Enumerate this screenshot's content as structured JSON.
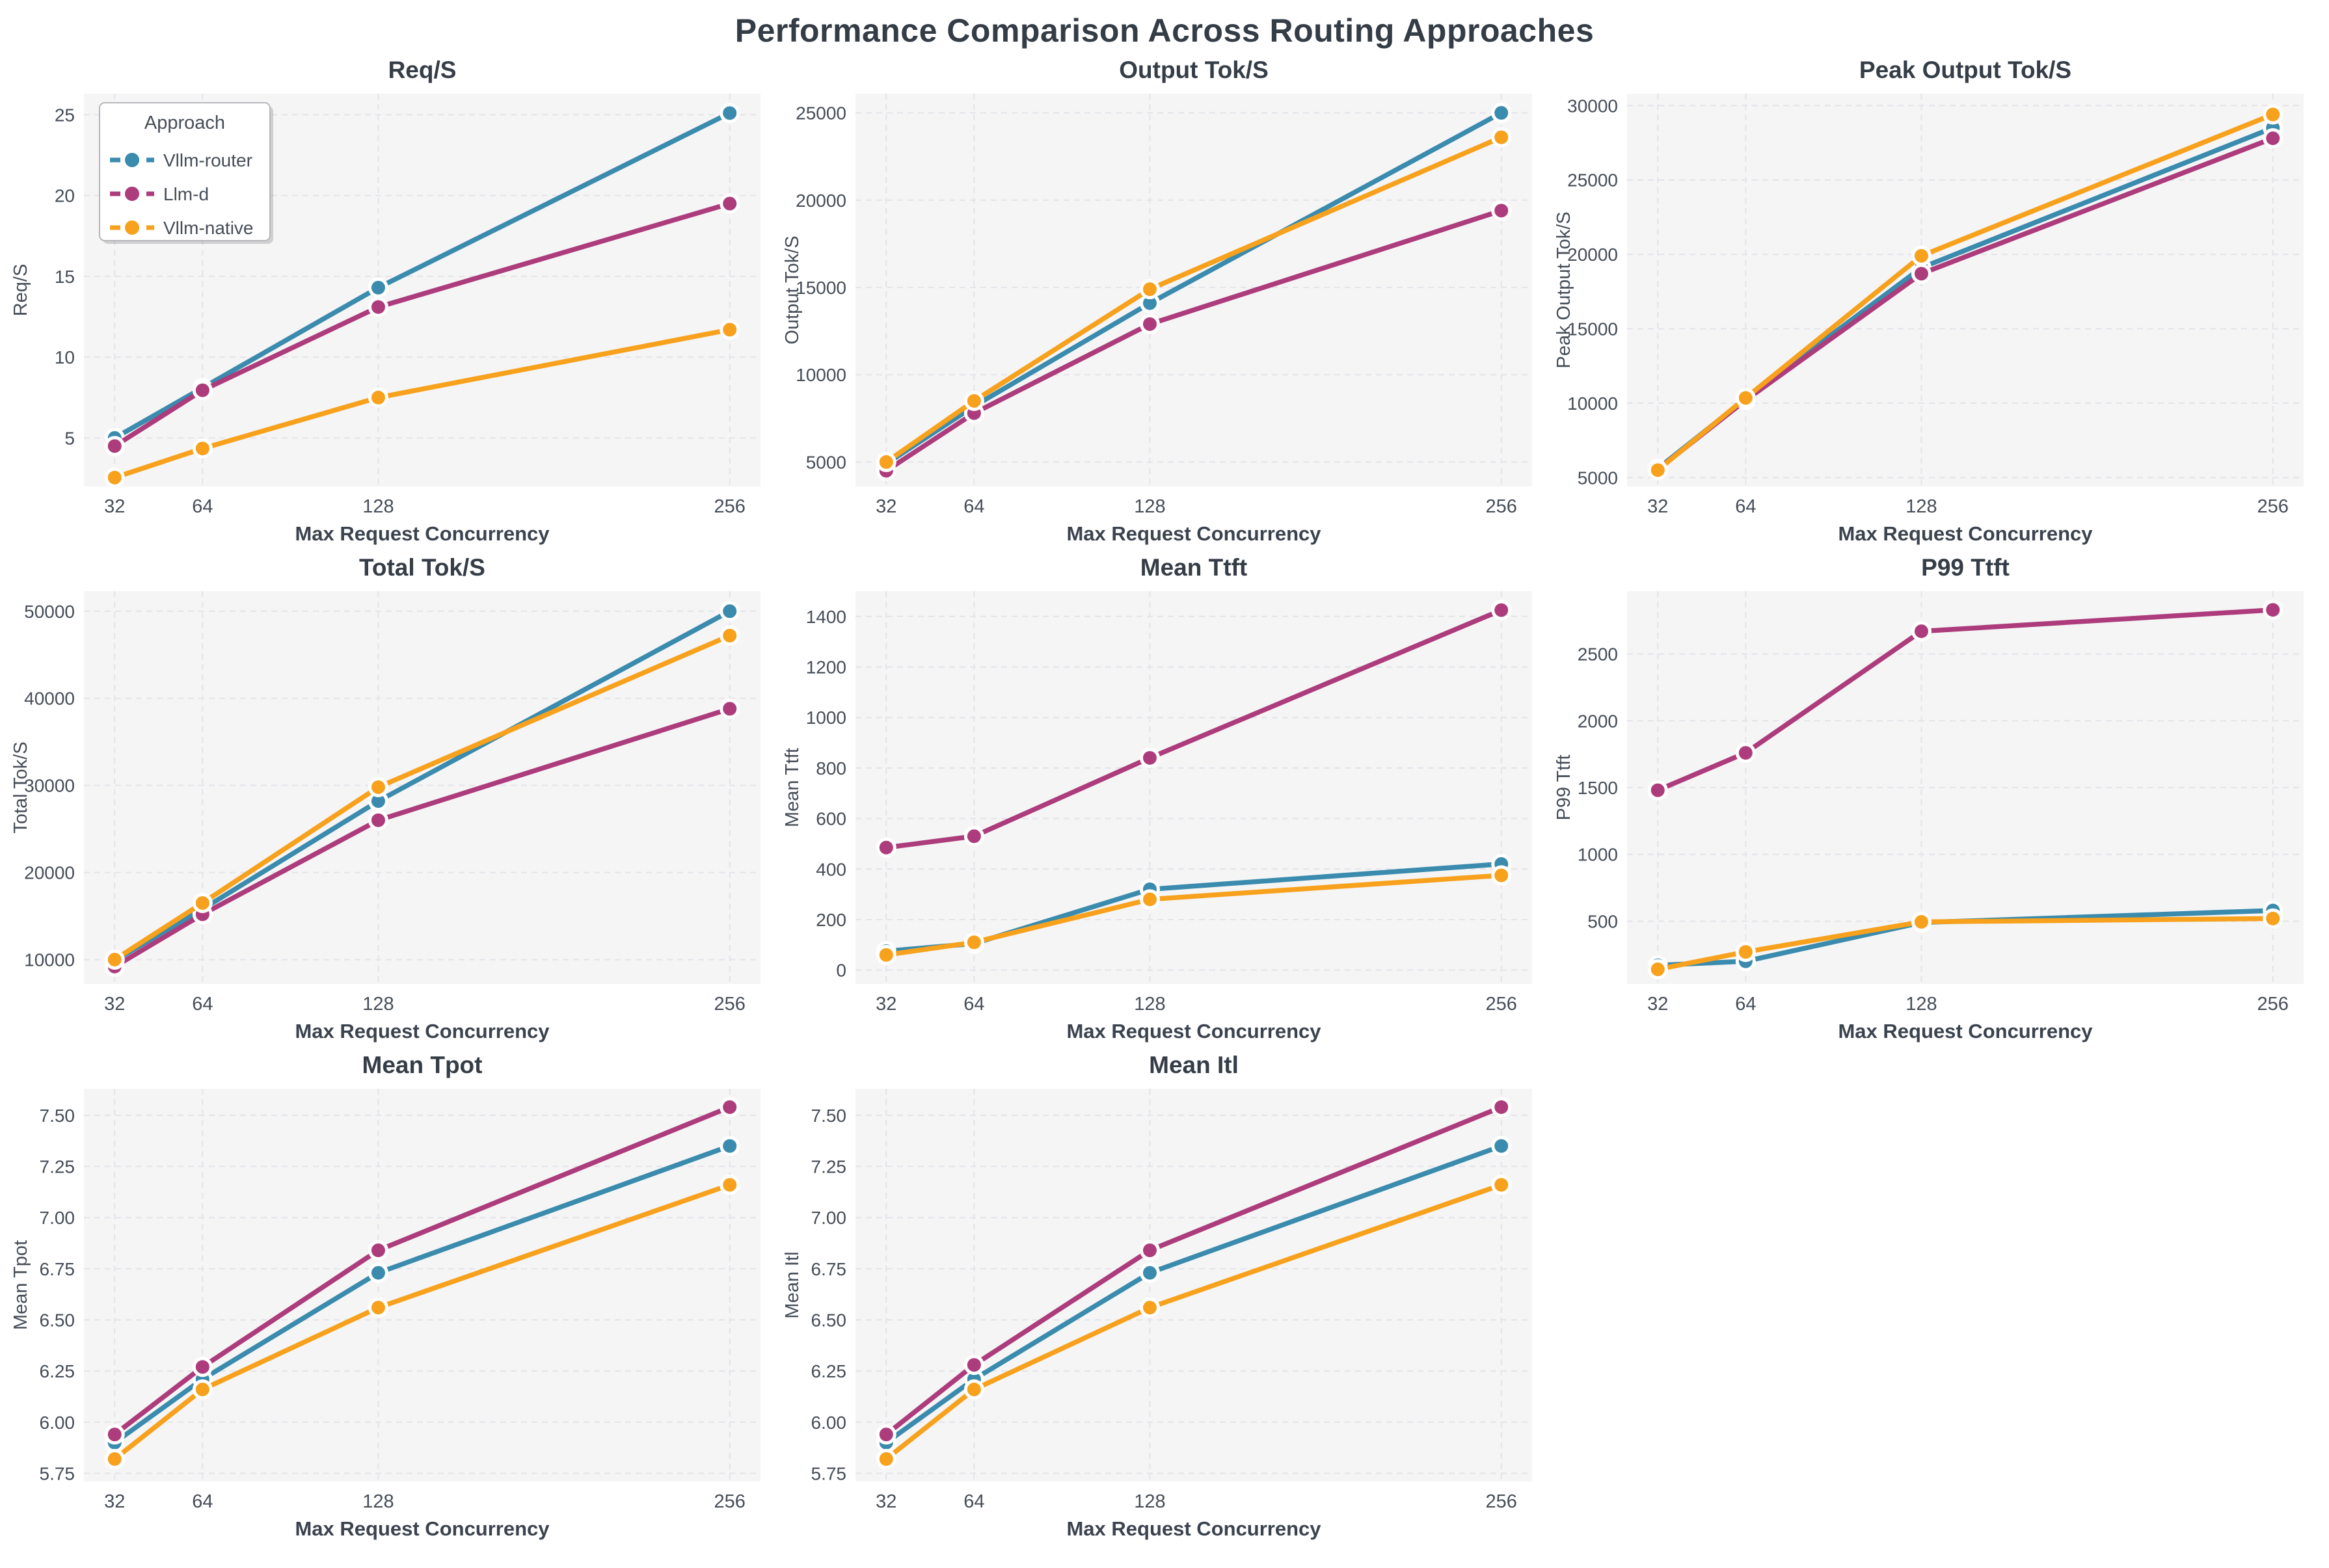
{
  "page_title": "Performance Comparison Across Routing Approaches",
  "x_axis": {
    "label": "Max Request Concurrency",
    "values": [
      32,
      64,
      128,
      256
    ],
    "tick_labels": [
      "32",
      "64",
      "128",
      "256"
    ],
    "scale": "linear"
  },
  "legend": {
    "title": "Approach",
    "location": "upper-left of first subplot",
    "entries": [
      {
        "label": "Vllm-router",
        "color": "#3a8bad"
      },
      {
        "label": "Llm-d",
        "color": "#ad3c7c"
      },
      {
        "label": "Vllm-native",
        "color": "#f7a11d"
      }
    ]
  },
  "style": {
    "plot_bg": "#f5f5f6",
    "grid_color": "#e4e4e9",
    "title_color": "#353d47",
    "tick_color": "#454d57",
    "label_color": "#3b434e",
    "legend_border": "#b6b6bc",
    "marker_edge": "#ffffff"
  },
  "chart_data": [
    {
      "type": "line",
      "title": "Req/S",
      "ylabel": "Req/S",
      "ylim": [
        2.0,
        26.3
      ],
      "yticks": [
        5,
        10,
        15,
        20,
        25
      ],
      "ytick_labels": [
        "5",
        "10",
        "15",
        "20",
        "25"
      ],
      "grid": true,
      "series": [
        {
          "name": "Vllm-router",
          "values": [
            5.0,
            8.1,
            14.3,
            25.1
          ]
        },
        {
          "name": "Llm-d",
          "values": [
            4.5,
            7.95,
            13.1,
            19.5
          ]
        },
        {
          "name": "Vllm-native",
          "values": [
            2.55,
            4.35,
            7.5,
            11.7
          ]
        }
      ]
    },
    {
      "type": "line",
      "title": "Output Tok/S",
      "ylabel": "Output Tok/S",
      "ylim": [
        3600,
        26100
      ],
      "yticks": [
        5000,
        10000,
        15000,
        20000,
        25000
      ],
      "ytick_labels": [
        "5000",
        "10000",
        "15000",
        "20000",
        "25000"
      ],
      "grid": true,
      "series": [
        {
          "name": "Vllm-router",
          "values": [
            4900,
            8200,
            14100,
            25000
          ]
        },
        {
          "name": "Llm-d",
          "values": [
            4500,
            7800,
            12900,
            19400
          ]
        },
        {
          "name": "Vllm-native",
          "values": [
            5000,
            8500,
            14900,
            23600
          ]
        }
      ]
    },
    {
      "type": "line",
      "title": "Peak Output Tok/S",
      "ylabel": "Peak Output Tok/S",
      "ylim": [
        4400,
        30800
      ],
      "yticks": [
        5000,
        10000,
        15000,
        20000,
        25000,
        30000
      ],
      "ytick_labels": [
        "5000",
        "10000",
        "15000",
        "20000",
        "25000",
        "30000"
      ],
      "grid": true,
      "series": [
        {
          "name": "Vllm-router",
          "values": [
            5600,
            10300,
            19100,
            28500
          ]
        },
        {
          "name": "Llm-d",
          "values": [
            5550,
            10200,
            18700,
            27800
          ]
        },
        {
          "name": "Vllm-native",
          "values": [
            5500,
            10350,
            19900,
            29400
          ]
        }
      ]
    },
    {
      "type": "line",
      "title": "Total Tok/S",
      "ylabel": "Total Tok/S",
      "ylim": [
        7200,
        52300
      ],
      "yticks": [
        10000,
        20000,
        30000,
        40000,
        50000
      ],
      "ytick_labels": [
        "10000",
        "20000",
        "30000",
        "40000",
        "50000"
      ],
      "grid": true,
      "series": [
        {
          "name": "Vllm-router",
          "values": [
            9900,
            15800,
            28200,
            50000
          ]
        },
        {
          "name": "Llm-d",
          "values": [
            9200,
            15200,
            26000,
            38800
          ]
        },
        {
          "name": "Vllm-native",
          "values": [
            10000,
            16500,
            29800,
            47200
          ]
        }
      ]
    },
    {
      "type": "line",
      "title": "Mean Ttft",
      "ylabel": "Mean Ttft",
      "ylim": [
        -55,
        1500
      ],
      "yticks": [
        0,
        200,
        400,
        600,
        800,
        1000,
        1200,
        1400
      ],
      "ytick_labels": [
        "0",
        "200",
        "400",
        "600",
        "800",
        "1000",
        "1200",
        "1400"
      ],
      "grid": true,
      "series": [
        {
          "name": "Vllm-router",
          "values": [
            75,
            105,
            320,
            420
          ]
        },
        {
          "name": "Llm-d",
          "values": [
            485,
            530,
            840,
            1425
          ]
        },
        {
          "name": "Vllm-native",
          "values": [
            60,
            110,
            280,
            375
          ]
        }
      ]
    },
    {
      "type": "line",
      "title": "P99 Ttft",
      "ylabel": "P99 Ttft",
      "ylim": [
        30,
        2970
      ],
      "yticks": [
        500,
        1000,
        1500,
        2000,
        2500
      ],
      "ytick_labels": [
        "500",
        "1000",
        "1500",
        "2000",
        "2500"
      ],
      "grid": true,
      "series": [
        {
          "name": "Vllm-router",
          "values": [
            170,
            200,
            490,
            580
          ]
        },
        {
          "name": "Llm-d",
          "values": [
            1480,
            1760,
            2670,
            2830
          ]
        },
        {
          "name": "Vllm-native",
          "values": [
            140,
            270,
            495,
            520
          ]
        }
      ]
    },
    {
      "type": "line",
      "title": "Mean Tpot",
      "ylabel": "Mean Tpot",
      "ylim": [
        5.71,
        7.63
      ],
      "yticks": [
        5.75,
        6.0,
        6.25,
        6.5,
        6.75,
        7.0,
        7.25,
        7.5
      ],
      "ytick_labels": [
        "5.75",
        "6.00",
        "6.25",
        "6.50",
        "6.75",
        "7.00",
        "7.25",
        "7.50"
      ],
      "grid": true,
      "series": [
        {
          "name": "Vllm-router",
          "values": [
            5.9,
            6.21,
            6.73,
            7.35
          ]
        },
        {
          "name": "Llm-d",
          "values": [
            5.94,
            6.27,
            6.84,
            7.54
          ]
        },
        {
          "name": "Vllm-native",
          "values": [
            5.82,
            6.16,
            6.56,
            7.16
          ]
        }
      ]
    },
    {
      "type": "line",
      "title": "Mean Itl",
      "ylabel": "Mean Itl",
      "ylim": [
        5.71,
        7.63
      ],
      "yticks": [
        5.75,
        6.0,
        6.25,
        6.5,
        6.75,
        7.0,
        7.25,
        7.5
      ],
      "ytick_labels": [
        "5.75",
        "6.00",
        "6.25",
        "6.50",
        "6.75",
        "7.00",
        "7.25",
        "7.50"
      ],
      "grid": true,
      "series": [
        {
          "name": "Vllm-router",
          "values": [
            5.9,
            6.21,
            6.73,
            7.35
          ]
        },
        {
          "name": "Llm-d",
          "values": [
            5.94,
            6.28,
            6.84,
            7.54
          ]
        },
        {
          "name": "Vllm-native",
          "values": [
            5.82,
            6.16,
            6.56,
            7.16
          ]
        }
      ]
    }
  ]
}
